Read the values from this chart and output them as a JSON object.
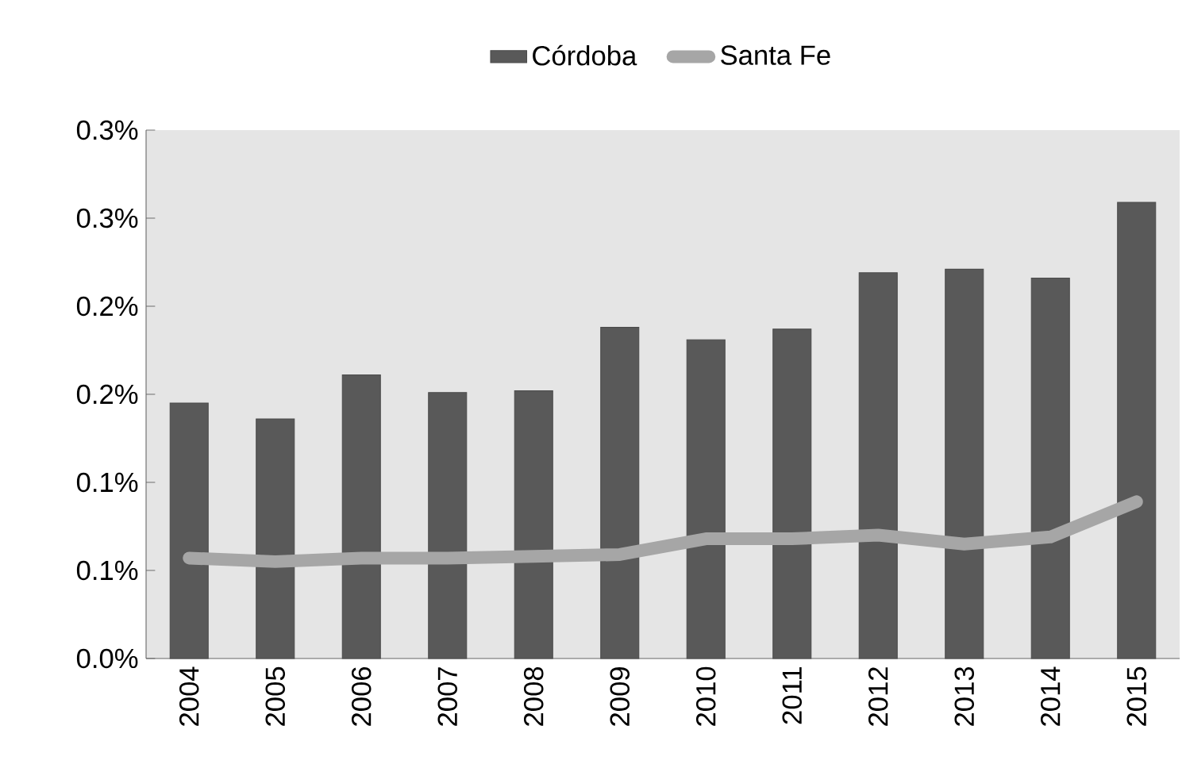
{
  "chart_data": {
    "type": "bar",
    "categories": [
      "2004",
      "2005",
      "2006",
      "2007",
      "2008",
      "2009",
      "2010",
      "2011",
      "2012",
      "2013",
      "2014",
      "2015"
    ],
    "series": [
      {
        "name": "Córdoba",
        "color": "#595959",
        "values": [
          0.145,
          0.136,
          0.161,
          0.151,
          0.152,
          0.188,
          0.181,
          0.187,
          0.219,
          0.221,
          0.216,
          0.259
        ]
      },
      {
        "name": "Santa Fe",
        "type": "line",
        "color": "#a6a6a6",
        "values": [
          0.057,
          0.055,
          0.057,
          0.057,
          0.058,
          0.059,
          0.068,
          0.068,
          0.07,
          0.065,
          0.069,
          0.089
        ]
      }
    ],
    "ylim": [
      0,
      0.3
    ],
    "yticks": [
      {
        "value": 0,
        "label": "0.0%"
      },
      {
        "value": 0.05,
        "label": "0.1%"
      },
      {
        "value": 0.1,
        "label": "0.1%"
      },
      {
        "value": 0.15,
        "label": "0.2%"
      },
      {
        "value": 0.2,
        "label": "0.2%"
      },
      {
        "value": 0.25,
        "label": "0.3%"
      },
      {
        "value": 0.3,
        "label": "0.3%"
      }
    ],
    "legend": "top"
  }
}
